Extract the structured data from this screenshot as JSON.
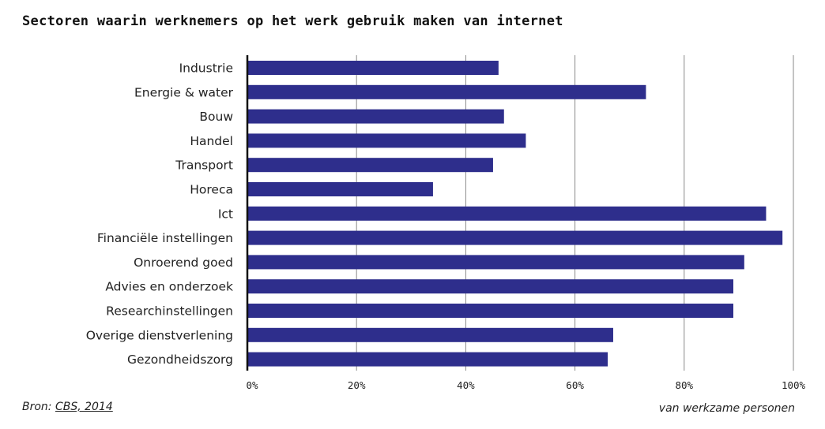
{
  "chart_data": {
    "type": "bar",
    "orientation": "horizontal",
    "title": "Sectoren waarin werknemers op het werk gebruik maken van internet",
    "categories": [
      "Industrie",
      "Energie & water",
      "Bouw",
      "Handel",
      "Transport",
      "Horeca",
      "Ict",
      "Financiële instellingen",
      "Onroerend goed",
      "Advies en onderzoek",
      "Researchinstellingen",
      "Overige dienstverlening",
      "Gezondheidszorg"
    ],
    "values": [
      46,
      73,
      47,
      51,
      45,
      34,
      95,
      98,
      91,
      89,
      89,
      67,
      66
    ],
    "xlim": [
      0,
      100
    ],
    "xticks": [
      0,
      20,
      40,
      60,
      80,
      100
    ],
    "xtick_labels": [
      "0%",
      "20%",
      "40%",
      "60%",
      "80%",
      "100%"
    ],
    "xlabel": "van werkzame personen",
    "ylabel": "",
    "grid": "vertical",
    "legend": "none",
    "bar_color": "#2e2e8c"
  },
  "source": {
    "prefix": "Bron: ",
    "link_text": "CBS, 2014"
  }
}
